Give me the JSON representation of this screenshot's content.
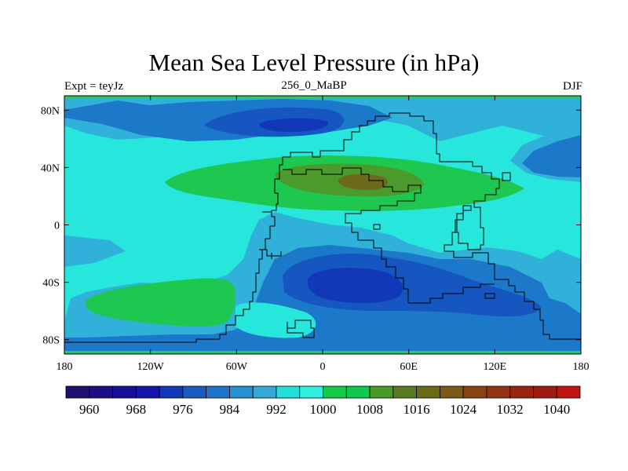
{
  "title": "Mean Sea Level Pressure (in hPa)",
  "left_label": "Expt = teyJz",
  "center_label": "256_0_MaBP",
  "right_label": "DJF",
  "x_ticks": [
    {
      "value": -180,
      "label": "180"
    },
    {
      "value": -120,
      "label": "120W"
    },
    {
      "value": -60,
      "label": "60W"
    },
    {
      "value": 0,
      "label": "0"
    },
    {
      "value": 60,
      "label": "60E"
    },
    {
      "value": 120,
      "label": "120E"
    },
    {
      "value": 180,
      "label": "180"
    }
  ],
  "y_ticks": [
    {
      "value": 80,
      "label": "80N"
    },
    {
      "value": 40,
      "label": "40N"
    },
    {
      "value": 0,
      "label": "0"
    },
    {
      "value": -40,
      "label": "40S"
    },
    {
      "value": -80,
      "label": "80S"
    }
  ],
  "colorbar": {
    "colors": [
      "#1f0f6e",
      "#1a0f84",
      "#170f98",
      "#1515ab",
      "#1238b8",
      "#1a5cc2",
      "#1f74c8",
      "#2a8fd0",
      "#35a8d8",
      "#20e0d8",
      "#30f0e0",
      "#18c848",
      "#10c850",
      "#4a9a28",
      "#5a7a20",
      "#6a6a18",
      "#7a5a14",
      "#8a4414",
      "#943414",
      "#9a2414",
      "#a01a14",
      "#c01414"
    ],
    "labels": [
      "960",
      "968",
      "976",
      "984",
      "992",
      "1000",
      "1008",
      "1016",
      "1024",
      "1032",
      "1040"
    ]
  },
  "field_colors": {
    "cyan": "#27e6dc",
    "light_blue": "#2fb1d9",
    "mid_blue": "#1c78c8",
    "blue": "#1656c0",
    "dark_blue": "#1237b8",
    "green": "#1ec850",
    "olive": "#4a9a2c",
    "brown": "#6d6a1e",
    "coast": "#000000",
    "pole_strip": "#29c86a"
  }
}
